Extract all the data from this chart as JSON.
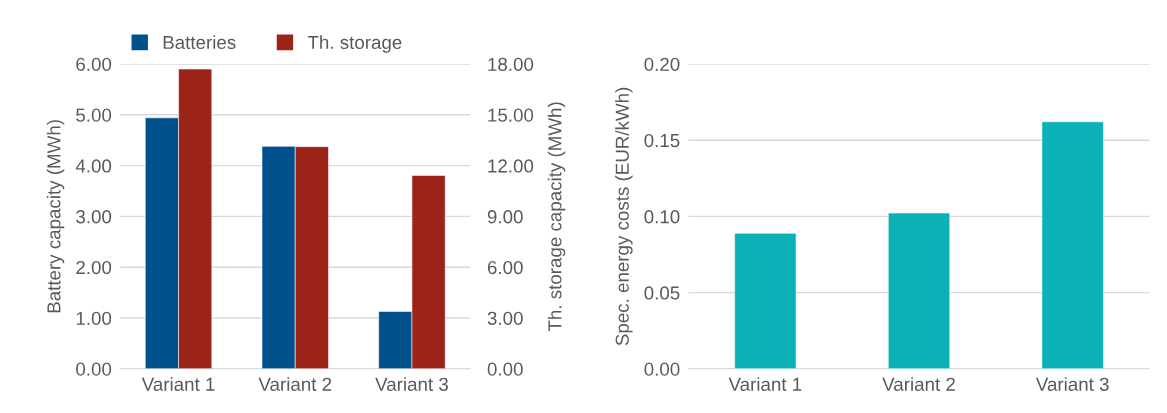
{
  "chart_data": [
    {
      "type": "bar",
      "categories": [
        "Variant 1",
        "Variant 2",
        "Variant 3"
      ],
      "ylabel": "Battery capacity (MWh)",
      "y2label": "Th. storage capacity (MWh)",
      "series": [
        {
          "name": "Batteries",
          "color": "#00508c",
          "values": [
            4.94,
            4.38,
            1.13
          ]
        },
        {
          "name": "Th. storage",
          "color": "#9c2318",
          "values": [
            17.7,
            13.12,
            11.42
          ],
          "axis": "y2"
        }
      ],
      "ylim": [
        0,
        6
      ],
      "yticks": [
        {
          "value": 0,
          "label": "0.00"
        },
        {
          "value": 1,
          "label": "1.00"
        },
        {
          "value": 2,
          "label": "2.00"
        },
        {
          "value": 3,
          "label": "3.00"
        },
        {
          "value": 4,
          "label": "4.00"
        },
        {
          "value": 5,
          "label": "5.00"
        },
        {
          "value": 6,
          "label": "6.00"
        }
      ],
      "y2lim": [
        0,
        18
      ],
      "y2ticks": [
        {
          "value": 0,
          "label": "0.00"
        },
        {
          "value": 3,
          "label": "3.00"
        },
        {
          "value": 6,
          "label": "6.00"
        },
        {
          "value": 9,
          "label": "9.00"
        },
        {
          "value": 12,
          "label": "12.00"
        },
        {
          "value": 15,
          "label": "15.00"
        },
        {
          "value": 18,
          "label": "18.00"
        }
      ],
      "grid": "y",
      "legend": "top"
    },
    {
      "type": "bar",
      "categories": [
        "Variant 1",
        "Variant 2",
        "Variant 3"
      ],
      "ylabel": "Spec. energy costs (EUR/kWh)",
      "series": [
        {
          "color": "#0ab1b7",
          "values": [
            0.0889,
            0.1022,
            0.1621
          ]
        }
      ],
      "ylim": [
        0,
        0.2
      ],
      "yticks": [
        {
          "value": 0,
          "label": "0.00"
        },
        {
          "value": 0.05,
          "label": "0.05"
        },
        {
          "value": 0.1,
          "label": "0.10"
        },
        {
          "value": 0.15,
          "label": "0.15"
        },
        {
          "value": 0.2,
          "label": "0.20"
        }
      ],
      "grid": "y"
    }
  ]
}
